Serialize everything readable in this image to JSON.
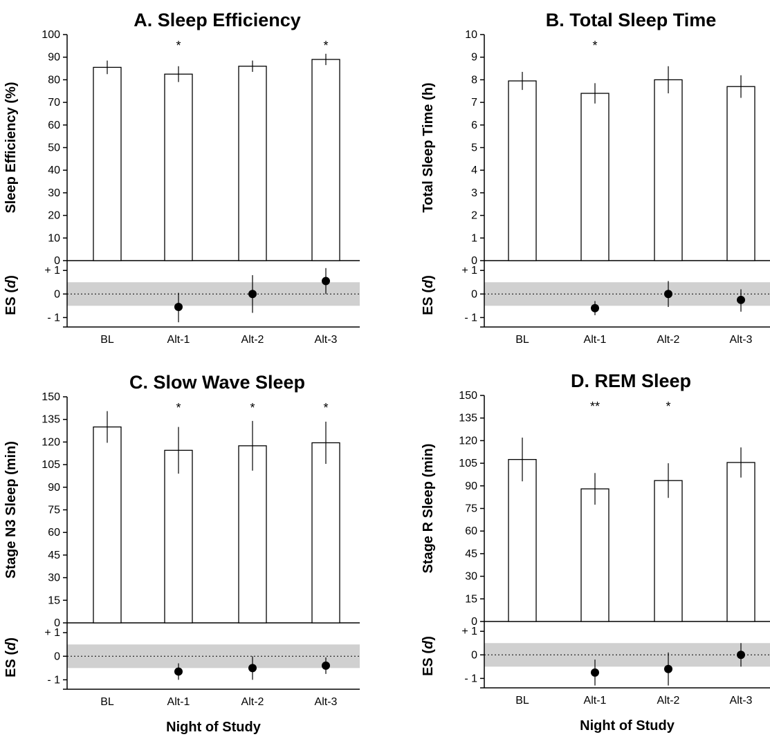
{
  "chart_data": [
    {
      "type": "bar",
      "title": "A. Sleep Efficiency",
      "xlabel": "",
      "ylabel": "Sleep Efficiency (%)",
      "ylim": [
        0,
        100
      ],
      "yticks": [
        0,
        10,
        20,
        30,
        40,
        50,
        60,
        70,
        80,
        90,
        100
      ],
      "categories": [
        "BL",
        "Alt-1",
        "Alt-2",
        "Alt-3"
      ],
      "values": [
        85.5,
        82.5,
        86,
        89
      ],
      "error": [
        3,
        3.5,
        2.5,
        2.5
      ],
      "significance": [
        "",
        "*",
        "",
        "*"
      ],
      "effect_size": {
        "ylabel_prefix": "ES (",
        "ylabel_symbol": "d",
        "ylabel_suffix": ")",
        "tick_labels": [
          "+ 1",
          "0",
          "- 1"
        ],
        "ylim": [
          -1.4,
          1.3
        ],
        "band": [
          -0.5,
          0.5
        ],
        "values": [
          null,
          -0.55,
          0.0,
          0.55
        ],
        "ci_low": [
          null,
          -1.2,
          -0.8,
          0.0
        ],
        "ci_high": [
          null,
          0.05,
          0.8,
          1.1
        ]
      }
    },
    {
      "type": "bar",
      "title": "B. Total Sleep Time",
      "xlabel": "",
      "ylabel": "Total Sleep Time (h)",
      "ylim": [
        0,
        10
      ],
      "yticks": [
        0,
        1,
        2,
        3,
        4,
        5,
        6,
        7,
        8,
        9,
        10
      ],
      "categories": [
        "BL",
        "Alt-1",
        "Alt-2",
        "Alt-3"
      ],
      "values": [
        7.95,
        7.4,
        8.0,
        7.7
      ],
      "error": [
        0.4,
        0.45,
        0.6,
        0.5
      ],
      "significance": [
        "",
        "*",
        "",
        ""
      ],
      "effect_size": {
        "ylabel_prefix": "ES (",
        "ylabel_symbol": "d",
        "ylabel_suffix": ")",
        "tick_labels": [
          "+ 1",
          "0",
          "- 1"
        ],
        "ylim": [
          -1.4,
          1.3
        ],
        "band": [
          -0.5,
          0.5
        ],
        "values": [
          null,
          -0.6,
          0.0,
          -0.25
        ],
        "ci_low": [
          null,
          -0.9,
          -0.55,
          -0.75
        ],
        "ci_high": [
          null,
          -0.3,
          0.55,
          0.2
        ]
      }
    },
    {
      "type": "bar",
      "title": "C. Slow Wave Sleep",
      "xlabel": "Night of Study",
      "ylabel": "Stage N3 Sleep (min)",
      "ylim": [
        0,
        150
      ],
      "yticks": [
        0,
        15,
        30,
        45,
        60,
        75,
        90,
        105,
        120,
        135,
        150
      ],
      "categories": [
        "BL",
        "Alt-1",
        "Alt-2",
        "Alt-3"
      ],
      "values": [
        130,
        114.5,
        117.5,
        119.5
      ],
      "error": [
        10.5,
        15.5,
        16.5,
        14
      ],
      "significance": [
        "",
        "*",
        "*",
        "*"
      ],
      "effect_size": {
        "ylabel_prefix": "ES (",
        "ylabel_symbol": "d",
        "ylabel_suffix": ")",
        "tick_labels": [
          "+ 1",
          "0",
          "- 1"
        ],
        "ylim": [
          -1.4,
          1.3
        ],
        "band": [
          -0.5,
          0.5
        ],
        "values": [
          null,
          -0.65,
          -0.5,
          -0.4
        ],
        "ci_low": [
          null,
          -1.0,
          -1.0,
          -0.75
        ],
        "ci_high": [
          null,
          -0.3,
          0.0,
          -0.05
        ]
      }
    },
    {
      "type": "bar",
      "title": "D. REM Sleep",
      "xlabel": "Night of Study",
      "ylabel": "Stage R Sleep (min)",
      "ylim": [
        0,
        150
      ],
      "yticks": [
        0,
        15,
        30,
        45,
        60,
        75,
        90,
        105,
        120,
        135,
        150
      ],
      "categories": [
        "BL",
        "Alt-1",
        "Alt-2",
        "Alt-3"
      ],
      "values": [
        107.5,
        88,
        93.5,
        105.5
      ],
      "error": [
        14.5,
        10.5,
        11.5,
        10
      ],
      "significance": [
        "",
        "**",
        "*",
        ""
      ],
      "effect_size": {
        "ylabel_prefix": "ES (",
        "ylabel_symbol": "d",
        "ylabel_suffix": ")",
        "tick_labels": [
          "+ 1",
          "0",
          "- 1"
        ],
        "ylim": [
          -1.4,
          1.3
        ],
        "band": [
          -0.5,
          0.5
        ],
        "values": [
          null,
          -0.75,
          -0.6,
          0.0
        ],
        "ci_low": [
          null,
          -1.3,
          -1.3,
          -0.5
        ],
        "ci_high": [
          null,
          -0.2,
          0.1,
          0.5
        ]
      }
    }
  ]
}
